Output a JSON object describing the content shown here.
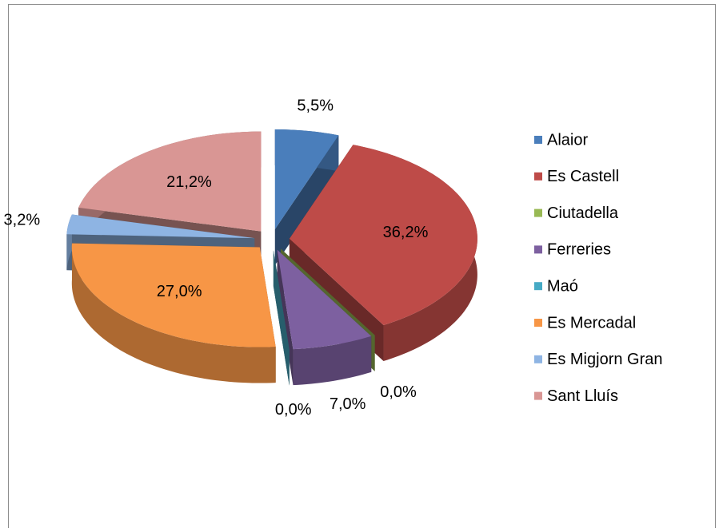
{
  "chart_data": {
    "type": "pie",
    "categories": [
      "Alaior",
      "Es Castell",
      "Ciutadella",
      "Ferreries",
      "Maó",
      "Es Mercadal",
      "Es Migjorn Gran",
      "Sant Lluís"
    ],
    "values": [
      5.5,
      36.2,
      0.0,
      7.0,
      0.0,
      27.0,
      3.2,
      21.2
    ],
    "value_labels": [
      "5,5%",
      "36,2%",
      "0,0%",
      "7,0%",
      "0,0%",
      "27,0%",
      "3,2%",
      "21,2%"
    ],
    "colors": [
      "#4a7ebb",
      "#be4b48",
      "#98b954",
      "#7d60a0",
      "#46aac5",
      "#f79646",
      "#8eb4e3",
      "#d99694"
    ],
    "legend": "right"
  }
}
